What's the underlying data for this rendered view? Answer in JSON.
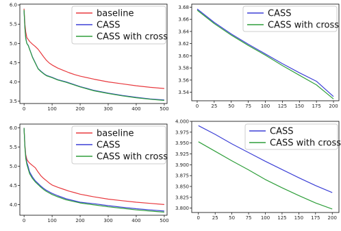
{
  "chart_data": [
    {
      "type": "line",
      "x_ticks": [
        "0",
        "100",
        "200",
        "300",
        "400",
        "500"
      ],
      "y_ticks": [
        "3.5",
        "4.0",
        "4.5",
        "5.0",
        "5.5",
        "6.0"
      ],
      "xlim": [
        -15,
        510
      ],
      "ylim": [
        3.44,
        6.02
      ],
      "grid": false,
      "legend_position": "top-right",
      "series": [
        {
          "name": "baseline",
          "color": "#e8383d",
          "x": [
            0,
            3,
            6,
            10,
            15,
            20,
            30,
            40,
            50,
            60,
            70,
            80,
            90,
            100,
            120,
            140,
            160,
            180,
            200,
            250,
            300,
            350,
            400,
            450,
            500
          ],
          "y": [
            5.9,
            5.5,
            5.3,
            5.15,
            5.1,
            5.05,
            4.98,
            4.92,
            4.85,
            4.75,
            4.65,
            4.56,
            4.49,
            4.44,
            4.36,
            4.3,
            4.24,
            4.19,
            4.15,
            4.07,
            4.0,
            3.95,
            3.9,
            3.86,
            3.83
          ]
        },
        {
          "name": "CASS",
          "color": "#3b3fd6",
          "x": [
            0,
            3,
            6,
            10,
            15,
            20,
            25,
            30,
            40,
            50,
            60,
            70,
            80,
            100,
            120,
            150,
            200,
            250,
            300,
            350,
            400,
            450,
            500
          ],
          "y": [
            5.85,
            5.4,
            5.15,
            5.0,
            4.95,
            4.85,
            4.75,
            4.65,
            4.5,
            4.35,
            4.28,
            4.22,
            4.17,
            4.12,
            4.06,
            4.0,
            3.88,
            3.78,
            3.71,
            3.65,
            3.6,
            3.56,
            3.53
          ]
        },
        {
          "name": "CASS with cross",
          "color": "#2e9e3a",
          "x": [
            0,
            3,
            6,
            10,
            15,
            20,
            25,
            30,
            40,
            50,
            60,
            70,
            80,
            100,
            120,
            150,
            200,
            250,
            300,
            350,
            400,
            450,
            500
          ],
          "y": [
            5.87,
            5.38,
            5.12,
            5.0,
            4.94,
            4.84,
            4.74,
            4.64,
            4.49,
            4.34,
            4.27,
            4.21,
            4.16,
            4.11,
            4.05,
            3.99,
            3.87,
            3.77,
            3.7,
            3.64,
            3.59,
            3.55,
            3.52
          ]
        }
      ]
    },
    {
      "type": "line",
      "x_ticks": [
        "0",
        "25",
        "50",
        "75",
        "100",
        "125",
        "150",
        "175",
        "200"
      ],
      "y_ticks": [
        "3.54",
        "3.56",
        "3.58",
        "3.60",
        "3.62",
        "3.64",
        "3.66",
        "3.68"
      ],
      "xlim": [
        -8,
        208
      ],
      "ylim": [
        3.526,
        3.685
      ],
      "grid": false,
      "legend_position": "top-right",
      "series": [
        {
          "name": "CASS",
          "color": "#3b3fd6",
          "x": [
            0,
            25,
            50,
            75,
            100,
            125,
            150,
            175,
            200
          ],
          "y": [
            3.677,
            3.655,
            3.636,
            3.619,
            3.603,
            3.587,
            3.572,
            3.558,
            3.533
          ]
        },
        {
          "name": "CASS with cross",
          "color": "#2e9e3a",
          "x": [
            0,
            25,
            50,
            75,
            100,
            125,
            150,
            175,
            200
          ],
          "y": [
            3.675,
            3.653,
            3.634,
            3.617,
            3.601,
            3.584,
            3.568,
            3.552,
            3.529
          ]
        }
      ]
    },
    {
      "type": "line",
      "x_ticks": [
        "0",
        "100",
        "200",
        "300",
        "400",
        "500"
      ],
      "y_ticks": [
        "4.0",
        "4.5",
        "5.0",
        "5.5",
        "6.0"
      ],
      "xlim": [
        -15,
        510
      ],
      "ylim": [
        3.72,
        6.1
      ],
      "grid": false,
      "legend_position": "top-right",
      "series": [
        {
          "name": "baseline",
          "color": "#e8383d",
          "x": [
            0,
            3,
            6,
            10,
            15,
            20,
            30,
            40,
            50,
            60,
            70,
            80,
            90,
            100,
            120,
            140,
            160,
            180,
            200,
            250,
            300,
            350,
            400,
            450,
            500
          ],
          "y": [
            6.0,
            5.55,
            5.3,
            5.18,
            5.12,
            5.08,
            5.02,
            4.96,
            4.85,
            4.75,
            4.68,
            4.62,
            4.56,
            4.51,
            4.45,
            4.4,
            4.35,
            4.31,
            4.27,
            4.2,
            4.14,
            4.1,
            4.06,
            4.03,
            4.0
          ]
        },
        {
          "name": "CASS",
          "color": "#3b3fd6",
          "x": [
            0,
            3,
            6,
            10,
            15,
            20,
            30,
            40,
            50,
            60,
            70,
            80,
            100,
            120,
            150,
            200,
            250,
            300,
            350,
            400,
            450,
            500
          ],
          "y": [
            6.0,
            5.5,
            5.25,
            5.1,
            4.98,
            4.85,
            4.72,
            4.62,
            4.55,
            4.48,
            4.42,
            4.37,
            4.29,
            4.23,
            4.15,
            4.06,
            4.02,
            3.97,
            3.93,
            3.89,
            3.86,
            3.83
          ]
        },
        {
          "name": "CASS with cross",
          "color": "#2e9e3a",
          "x": [
            0,
            3,
            6,
            10,
            15,
            20,
            30,
            40,
            50,
            60,
            70,
            80,
            100,
            120,
            150,
            200,
            250,
            300,
            350,
            400,
            450,
            500
          ],
          "y": [
            6.0,
            5.48,
            5.2,
            5.05,
            4.92,
            4.8,
            4.68,
            4.59,
            4.52,
            4.45,
            4.39,
            4.34,
            4.26,
            4.2,
            4.12,
            4.04,
            3.99,
            3.94,
            3.9,
            3.86,
            3.83,
            3.8
          ]
        }
      ]
    },
    {
      "type": "line",
      "x_ticks": [
        "0",
        "25",
        "50",
        "75",
        "100",
        "125",
        "150",
        "175",
        "200"
      ],
      "y_ticks": [
        "3.800",
        "3.825",
        "3.850",
        "3.875",
        "3.900",
        "3.925",
        "3.950",
        "3.975",
        "4.000"
      ],
      "xlim": [
        -10,
        210
      ],
      "ylim": [
        3.79,
        4.0
      ],
      "grid": false,
      "legend_position": "top-right",
      "series": [
        {
          "name": "CASS",
          "color": "#3b3fd6",
          "x": [
            0,
            25,
            50,
            75,
            100,
            125,
            150,
            175,
            200
          ],
          "y": [
            3.99,
            3.97,
            3.948,
            3.928,
            3.908,
            3.889,
            3.87,
            3.852,
            3.836
          ]
        },
        {
          "name": "CASS with cross",
          "color": "#2e9e3a",
          "x": [
            0,
            25,
            50,
            75,
            100,
            125,
            150,
            175,
            200
          ],
          "y": [
            3.953,
            3.931,
            3.909,
            3.888,
            3.866,
            3.847,
            3.829,
            3.812,
            3.798
          ]
        }
      ]
    }
  ]
}
